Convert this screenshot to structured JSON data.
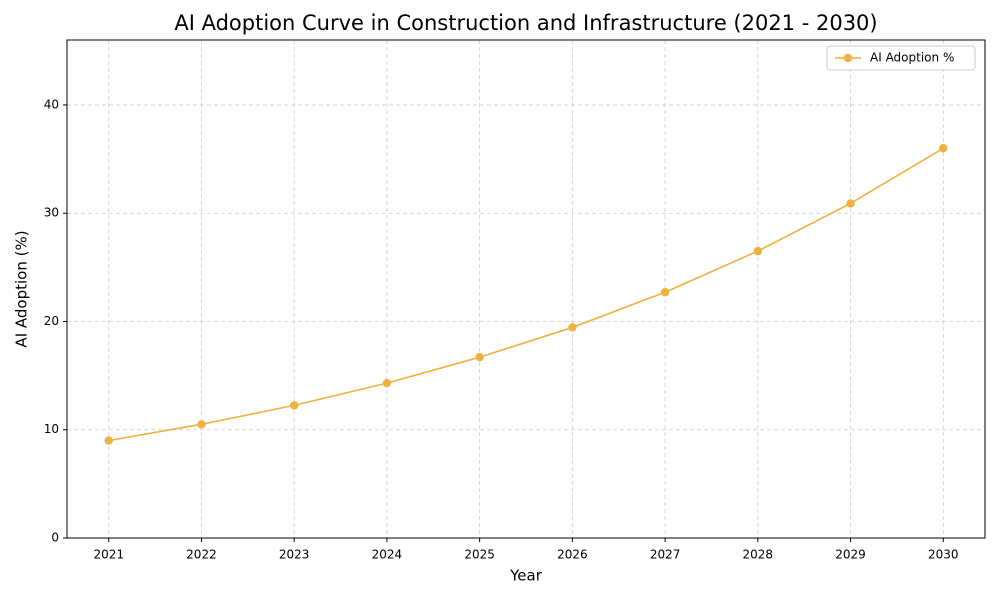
{
  "chart_data": {
    "type": "line",
    "title": "AI Adoption Curve in Construction and Infrastructure (2021 - 2030)",
    "x_label": "Year",
    "y_label": "AI Adoption (%)",
    "x": [
      2021,
      2022,
      2023,
      2024,
      2025,
      2026,
      2027,
      2028,
      2029,
      2030
    ],
    "series": [
      {
        "name": "AI Adoption %",
        "color": "#f0b140",
        "values": [
          9.0,
          10.5,
          12.25,
          14.3,
          16.7,
          19.45,
          22.7,
          26.5,
          30.9,
          36.0
        ]
      }
    ],
    "xlim": [
      2020.55,
      2030.45
    ],
    "xticks": [
      2021,
      2022,
      2023,
      2024,
      2025,
      2026,
      2027,
      2028,
      2029,
      2030
    ],
    "ylim": [
      0,
      46
    ],
    "yticks": [
      0,
      10,
      20,
      30,
      40
    ],
    "grid": true,
    "legend": "upper right"
  }
}
